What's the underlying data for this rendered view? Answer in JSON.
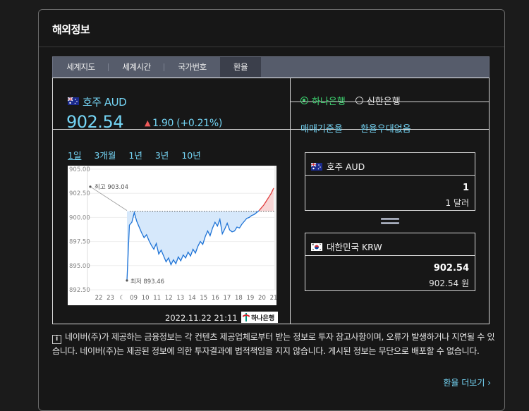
{
  "panel": {
    "title": "해외정보"
  },
  "tabs": [
    {
      "label": "세계지도",
      "active": false
    },
    {
      "label": "세계시간",
      "active": false
    },
    {
      "label": "국가번호",
      "active": false
    },
    {
      "label": "환율",
      "active": true
    }
  ],
  "currency": {
    "name": "호주 AUD",
    "price": "902.54",
    "change": "1.90 (+0.21%)",
    "direction": "up"
  },
  "banks": [
    {
      "label": "하나은행",
      "selected": true
    },
    {
      "label": "신한은행",
      "selected": false
    }
  ],
  "rate_links": [
    "매매기준율",
    "환율우대없음"
  ],
  "periods": [
    {
      "label": "1일",
      "active": true
    },
    {
      "label": "3개월",
      "active": false
    },
    {
      "label": "1년",
      "active": false
    },
    {
      "label": "3년",
      "active": false
    },
    {
      "label": "10년",
      "active": false
    }
  ],
  "chart_data": {
    "type": "line",
    "y_ticks": [
      "905.00",
      "902.50",
      "900.00",
      "897.50",
      "895.00",
      "892.50"
    ],
    "x_ticks": [
      "22",
      "23",
      "moon",
      "09",
      "10",
      "11",
      "12",
      "13",
      "14",
      "15",
      "16",
      "17",
      "18",
      "19",
      "20",
      "21"
    ],
    "ylim": [
      892.5,
      905.0
    ],
    "high_label": "최고 903.04",
    "low_label": "최저 893.46",
    "high": 903.04,
    "low": 893.46,
    "baseline": 900.64,
    "x": [
      0,
      1,
      2,
      3,
      4,
      5,
      6,
      7,
      8,
      9,
      10,
      11,
      12,
      13,
      14,
      15,
      16,
      17,
      18,
      19,
      20,
      21,
      22,
      23,
      24,
      25,
      26,
      27,
      28,
      29,
      30,
      31,
      32,
      33,
      34,
      35,
      36,
      37,
      38,
      39,
      40,
      41,
      42,
      43,
      44,
      45,
      46,
      47,
      48,
      49,
      50,
      51,
      52,
      53,
      54,
      55,
      56,
      57,
      58,
      59,
      60
    ],
    "y": [
      893.46,
      899.2,
      899.5,
      900.5,
      899.6,
      899.0,
      898.4,
      897.9,
      898.2,
      897.6,
      897.1,
      896.7,
      897.3,
      896.2,
      896.6,
      896.0,
      895.4,
      895.8,
      895.1,
      895.6,
      895.2,
      895.9,
      895.5,
      896.1,
      895.8,
      896.4,
      896.0,
      896.7,
      896.3,
      897.0,
      897.5,
      897.2,
      898.0,
      898.6,
      898.1,
      898.9,
      899.5,
      899.1,
      899.8,
      898.3,
      898.8,
      899.4,
      898.7,
      898.5,
      898.6,
      899.0,
      898.9,
      899.3,
      899.6,
      899.9,
      900.0,
      900.2,
      900.3,
      900.5,
      900.7,
      901.0,
      901.3,
      901.7,
      902.1,
      902.5,
      903.04
    ],
    "stamp": "2022.11.22  21:11",
    "source": "하나은행"
  },
  "converter": {
    "from": {
      "name": "호주 AUD",
      "amount": "1",
      "sub": "1 달러"
    },
    "to": {
      "name": "대한민국 KRW",
      "amount": "902.54",
      "sub": "902.54 원"
    }
  },
  "notice": {
    "icon": "info-icon",
    "text": "네이버(주)가 제공하는 금융정보는 각 컨텐츠 제공업체로부터 받는 정보로 투자 참고사항이며, 오류가 발생하거나 지연될 수 있습니다. 네이버(주)는 제공된 정보에 의한 투자결과에 법적책임을 지지 않습니다. 게시된 정보는 무단으로 배포할 수 없습니다."
  },
  "more_link": "환율 더보기 ›",
  "colors": {
    "accent": "#74d4f4",
    "up": "#f05a5a",
    "selected": "#3ccf6e",
    "line": "#1e73d6"
  }
}
